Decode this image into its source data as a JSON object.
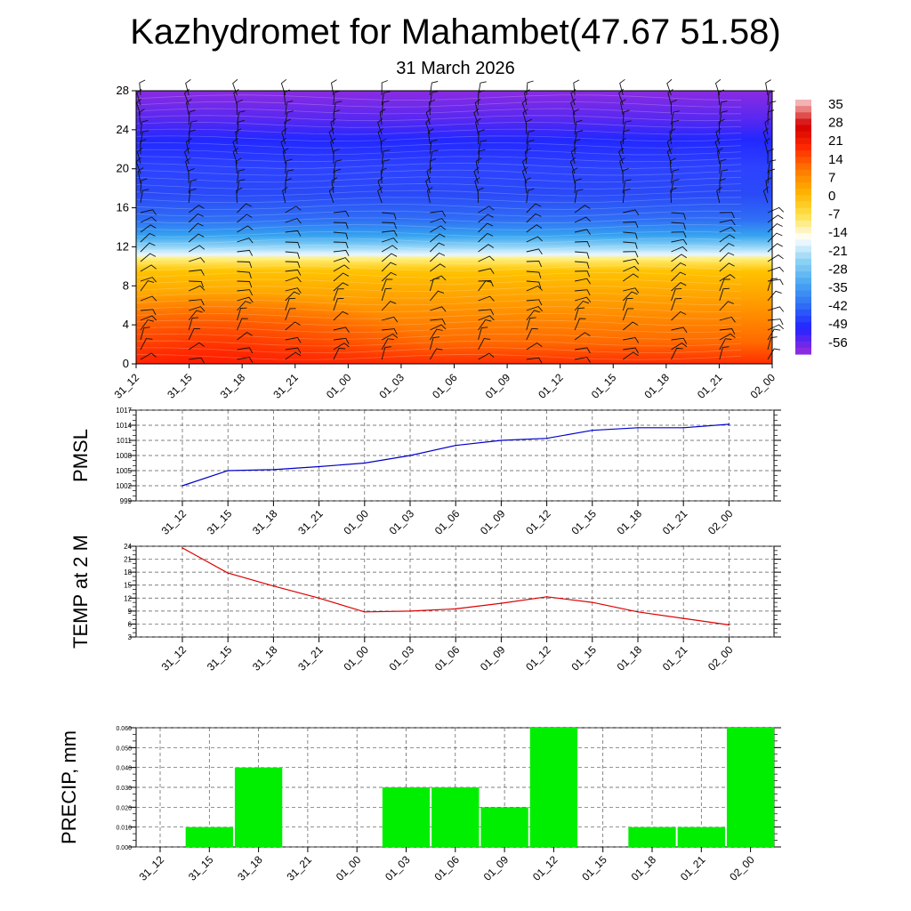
{
  "title": "Kazhydromet for Mahambet(47.67 51.58)",
  "subtitle": "31 March 2026",
  "chart_data": [
    {
      "type": "heatmap",
      "name": "cross-section",
      "description_fields": "temperature (colour) with wind barbs vs forecast time and level",
      "yticks": [
        "0",
        "4",
        "8",
        "12",
        "16",
        "20",
        "24",
        "28"
      ],
      "ylim": [
        0,
        28
      ],
      "xticks": [
        "31_12",
        "31_15",
        "31_18",
        "31_21",
        "01_00",
        "01_03",
        "01_06",
        "01_09",
        "01_12",
        "01_15",
        "01_18",
        "01_21",
        "02_00"
      ],
      "colorbar": {
        "labels": [
          "35",
          "28",
          "21",
          "14",
          "7",
          "0",
          "-7",
          "-14",
          "-21",
          "-28",
          "-35",
          "-42",
          "-49",
          "-56"
        ],
        "range": [
          -63,
          42
        ],
        "colors": [
          "#8a2be2",
          "#2323ff",
          "#2f6df5",
          "#4aa8f2",
          "#8fd3f5",
          "#ffffff",
          "#ffe14d",
          "#ffb400",
          "#ff7a00",
          "#ff2a00",
          "#d30000",
          "#f3b3b3"
        ]
      }
    },
    {
      "type": "line",
      "name": "pmsl",
      "ylabel": "PMSL",
      "categories": [
        "31_12",
        "31_15",
        "31_18",
        "31_21",
        "01_00",
        "01_03",
        "01_06",
        "01_09",
        "01_12",
        "01_15",
        "01_18",
        "01_21",
        "02_00"
      ],
      "values": [
        1002.0,
        1005.0,
        1005.2,
        1005.8,
        1006.5,
        1008.0,
        1010.0,
        1011.0,
        1011.4,
        1013.0,
        1013.5,
        1013.5,
        1014.2
      ],
      "ylim": [
        999,
        1017
      ],
      "yticks": [
        "999",
        "1002",
        "1005",
        "1008",
        "1011",
        "1014",
        "1017"
      ],
      "color": "#0000cc"
    },
    {
      "type": "line",
      "name": "temp",
      "ylabel": "TEMP at 2 M",
      "categories": [
        "31_12",
        "31_15",
        "31_18",
        "31_21",
        "01_00",
        "01_03",
        "01_06",
        "01_09",
        "01_12",
        "01_15",
        "01_18",
        "01_21",
        "02_00"
      ],
      "values": [
        23.6,
        17.8,
        14.8,
        12.0,
        8.8,
        9.0,
        9.5,
        10.8,
        12.3,
        11.0,
        8.8,
        7.3,
        5.8
      ],
      "ylim": [
        3,
        24
      ],
      "yticks": [
        "3",
        "6",
        "9",
        "12",
        "15",
        "18",
        "21",
        "24"
      ],
      "color": "#dd0000"
    },
    {
      "type": "bar",
      "name": "precip",
      "ylabel": "PRECIP, mm",
      "categories": [
        "31_12",
        "31_15",
        "31_18",
        "31_21",
        "01_00",
        "01_03",
        "01_06",
        "01_09",
        "01_12",
        "01_15",
        "01_18",
        "01_21",
        "02_00"
      ],
      "values": [
        0,
        0.01,
        0.04,
        0,
        0,
        0.03,
        0.03,
        0.02,
        0.06,
        0,
        0.01,
        0.01,
        0.06
      ],
      "ylim": [
        0,
        0.06
      ],
      "yticks": [
        "0.000",
        "0.010",
        "0.020",
        "0.030",
        "0.040",
        "0.050",
        "0.060"
      ],
      "color": "#00ee00"
    }
  ]
}
